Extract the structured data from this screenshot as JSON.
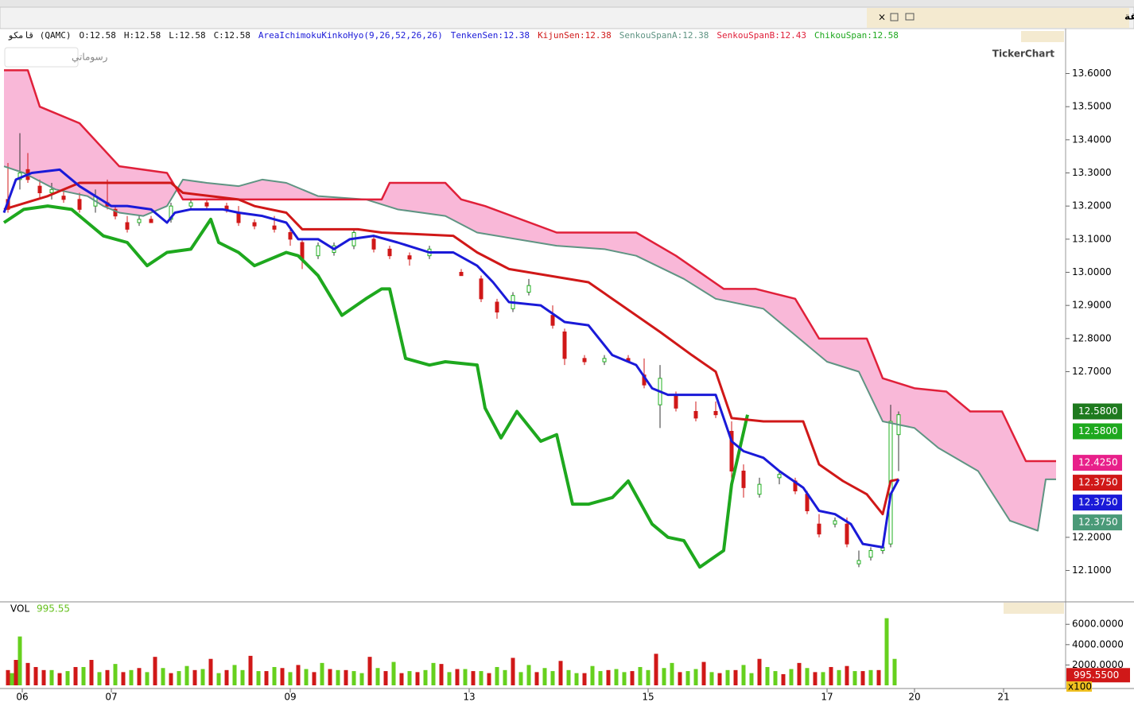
{
  "window_title": "قامكو - خمس عشرة دقيقة",
  "chart_data": {
    "type": "candlestick",
    "ohlc_label": [
      "قامكو (QAMC)",
      "O:12.58",
      "H:12.58",
      "L:12.58",
      "C:12.58"
    ],
    "indicator": "AreaIchimokuKinkoHyo(9,26,52,26,26)",
    "logo": "TickerChart",
    "drawings_button": "رسوماتي",
    "xlim": [
      0,
      267
    ],
    "xticks": [
      {
        "value": 4.6,
        "label": "06"
      },
      {
        "value": 27,
        "label": "07"
      },
      {
        "value": 72,
        "label": "09"
      },
      {
        "value": 117,
        "label": "13"
      },
      {
        "value": 162,
        "label": "15"
      },
      {
        "value": 207,
        "label": "17"
      },
      {
        "value": 229,
        "label": "20"
      },
      {
        "value": 251.4,
        "label": "21"
      }
    ],
    "ylim": [
      12.01,
      13.69
    ],
    "yticks": [
      {
        "value": 13.6,
        "label": "13.6000"
      },
      {
        "value": 13.5,
        "label": "13.5000"
      },
      {
        "value": 13.4,
        "label": "13.4000"
      },
      {
        "value": 13.3,
        "label": "13.3000"
      },
      {
        "value": 13.2,
        "label": "13.2000"
      },
      {
        "value": 13.1,
        "label": "13.1000"
      },
      {
        "value": 13.0,
        "label": "13.0000"
      },
      {
        "value": 12.9,
        "label": "12.9000"
      },
      {
        "value": 12.8,
        "label": "12.8000"
      },
      {
        "value": 12.7,
        "label": "12.7000"
      },
      {
        "value": 12.2,
        "label": "12.2000"
      },
      {
        "value": 12.1,
        "label": "12.1000"
      }
    ],
    "cloud_color": "#f9b8d8",
    "candles": {
      "up_color": "#22b022",
      "down_color": "#d01818",
      "x": [
        1,
        4,
        6,
        9,
        12,
        15,
        19,
        23,
        26,
        28,
        31,
        34,
        37,
        42,
        47,
        51,
        56,
        59,
        63,
        68,
        72,
        75,
        79,
        83,
        88,
        93,
        97,
        102,
        107,
        115,
        120,
        124,
        128,
        132,
        138,
        141,
        146,
        151,
        157,
        161,
        165,
        169,
        174,
        179,
        183,
        186,
        190,
        195,
        199,
        202,
        205,
        209,
        212,
        215,
        218,
        221,
        223,
        225
      ],
      "open": [
        13.22,
        13.28,
        13.31,
        13.26,
        13.24,
        13.23,
        13.22,
        13.2,
        13.21,
        13.19,
        13.15,
        13.15,
        13.16,
        13.16,
        13.2,
        13.21,
        13.2,
        13.18,
        13.15,
        13.14,
        13.12,
        13.09,
        13.05,
        13.06,
        13.08,
        13.1,
        13.07,
        13.05,
        13.05,
        13.0,
        12.98,
        12.91,
        12.89,
        12.94,
        12.87,
        12.82,
        12.74,
        12.73,
        12.74,
        12.69,
        12.6,
        12.63,
        12.58,
        12.58,
        12.52,
        12.4,
        12.33,
        12.38,
        12.37,
        12.33,
        12.24,
        12.24,
        12.24,
        12.12,
        12.14,
        12.16,
        12.18,
        12.51
      ],
      "high": [
        13.33,
        13.42,
        13.36,
        13.28,
        13.27,
        13.25,
        13.24,
        13.25,
        13.28,
        13.2,
        13.17,
        13.17,
        13.17,
        13.21,
        13.22,
        13.22,
        13.21,
        13.2,
        13.16,
        13.17,
        13.13,
        13.1,
        13.09,
        13.09,
        13.13,
        13.11,
        13.08,
        13.06,
        13.08,
        13.01,
        12.99,
        12.92,
        12.94,
        12.98,
        12.9,
        12.83,
        12.75,
        12.75,
        12.75,
        12.74,
        12.72,
        12.64,
        12.61,
        12.61,
        12.55,
        12.42,
        12.38,
        12.4,
        12.38,
        12.34,
        12.27,
        12.26,
        12.26,
        12.16,
        12.17,
        12.19,
        12.6,
        12.58
      ],
      "low": [
        13.18,
        13.25,
        13.27,
        13.22,
        13.22,
        13.21,
        13.18,
        13.18,
        13.19,
        13.16,
        13.12,
        13.14,
        13.15,
        13.15,
        13.19,
        13.19,
        13.18,
        13.14,
        13.13,
        13.12,
        13.08,
        13.01,
        13.04,
        13.05,
        13.07,
        13.06,
        13.04,
        13.02,
        13.04,
        12.99,
        12.91,
        12.86,
        12.88,
        12.93,
        12.83,
        12.72,
        12.72,
        12.72,
        12.73,
        12.65,
        12.53,
        12.58,
        12.55,
        12.56,
        12.36,
        12.32,
        12.32,
        12.36,
        12.33,
        12.27,
        12.2,
        12.23,
        12.17,
        12.11,
        12.13,
        12.15,
        12.17,
        12.4
      ],
      "close": [
        13.19,
        13.3,
        13.28,
        13.24,
        13.25,
        13.22,
        13.19,
        13.23,
        13.2,
        13.17,
        13.13,
        13.16,
        13.15,
        13.2,
        13.21,
        13.2,
        13.19,
        13.15,
        13.14,
        13.13,
        13.1,
        13.04,
        13.08,
        13.08,
        13.12,
        13.07,
        13.05,
        13.04,
        13.07,
        12.99,
        12.92,
        12.88,
        12.93,
        12.96,
        12.84,
        12.74,
        12.73,
        12.74,
        12.73,
        12.66,
        12.68,
        12.59,
        12.56,
        12.57,
        12.4,
        12.35,
        12.36,
        12.39,
        12.34,
        12.28,
        12.21,
        12.25,
        12.18,
        12.13,
        12.16,
        12.17,
        12.55,
        12.57
      ]
    },
    "series": [
      {
        "name": "SenkouSpanA:12.38",
        "color": "#5f9483",
        "x": [
          0,
          5,
          13,
          21,
          25,
          29,
          35,
          41,
          45,
          51,
          59,
          65,
          71,
          79,
          91,
          99,
          111,
          119,
          139,
          151,
          159,
          171,
          179,
          191,
          199,
          207,
          215,
          221,
          229,
          235,
          245,
          253,
          260,
          262,
          264.6
        ],
        "values": [
          13.32,
          13.3,
          13.25,
          13.23,
          13.2,
          13.18,
          13.17,
          13.2,
          13.28,
          13.27,
          13.26,
          13.28,
          13.27,
          13.23,
          13.22,
          13.19,
          13.17,
          13.12,
          13.08,
          13.07,
          13.05,
          12.98,
          12.92,
          12.89,
          12.81,
          12.73,
          12.7,
          12.55,
          12.53,
          12.47,
          12.4,
          12.25,
          12.22,
          12.375,
          12.375
        ]
      },
      {
        "name": "SenkouSpanB:12.43",
        "color": "#e0203a",
        "x": [
          0,
          6,
          9,
          19,
          29,
          41,
          45,
          95,
          97,
          111,
          115,
          121,
          139,
          159,
          169,
          181,
          189,
          199,
          205,
          217,
          221,
          229,
          237,
          243,
          251,
          257,
          264.6
        ],
        "values": [
          13.61,
          13.61,
          13.5,
          13.45,
          13.32,
          13.3,
          13.22,
          13.22,
          13.27,
          13.27,
          13.22,
          13.2,
          13.12,
          13.12,
          13.05,
          12.95,
          12.95,
          12.92,
          12.8,
          12.8,
          12.68,
          12.65,
          12.64,
          12.58,
          12.58,
          12.43,
          12.43
        ]
      },
      {
        "name": "ChikouSpan:12.58",
        "color": "#1ea81e",
        "x": [
          0,
          5,
          11,
          17,
          21,
          25,
          31,
          36,
          41,
          47,
          52,
          54,
          59,
          63,
          67,
          71,
          74,
          79,
          85,
          91,
          95,
          97,
          101,
          107,
          111,
          119,
          121,
          125,
          129,
          135,
          139,
          143,
          147,
          153,
          157,
          163,
          167,
          171,
          175,
          181,
          183,
          187
        ],
        "values": [
          13.15,
          13.19,
          13.2,
          13.19,
          13.15,
          13.11,
          13.09,
          13.02,
          13.06,
          13.07,
          13.16,
          13.09,
          13.06,
          13.02,
          13.04,
          13.06,
          13.05,
          12.99,
          12.87,
          12.92,
          12.95,
          12.95,
          12.74,
          12.72,
          12.73,
          12.72,
          12.59,
          12.5,
          12.58,
          12.49,
          12.51,
          12.3,
          12.3,
          12.32,
          12.37,
          12.24,
          12.2,
          12.19,
          12.11,
          12.16,
          12.36,
          12.57
        ]
      },
      {
        "name": "KijunSen:12.38",
        "color": "#d01818",
        "x": [
          0,
          11,
          19,
          42,
          45,
          59,
          63,
          71,
          75,
          89,
          95,
          113,
          119,
          127,
          147,
          153,
          165,
          173,
          179,
          183,
          191,
          201,
          205,
          211,
          217,
          221,
          223,
          225
        ],
        "values": [
          13.19,
          13.23,
          13.27,
          13.27,
          13.24,
          13.22,
          13.2,
          13.18,
          13.13,
          13.13,
          13.12,
          13.11,
          13.06,
          13.01,
          12.97,
          12.92,
          12.82,
          12.75,
          12.7,
          12.56,
          12.55,
          12.55,
          12.42,
          12.37,
          12.33,
          12.27,
          12.37,
          12.375
        ]
      },
      {
        "name": "TenkenSen:12.38",
        "color": "#1a1ad8",
        "x": [
          0,
          3,
          7,
          14,
          19,
          23,
          27,
          31,
          37,
          41,
          43,
          47,
          55,
          59,
          65,
          71,
          74,
          79,
          83,
          87,
          93,
          99,
          107,
          113,
          119,
          123,
          127,
          135,
          141,
          147,
          153,
          159,
          163,
          167,
          179,
          183,
          186,
          191,
          195,
          201,
          205,
          209,
          213,
          216,
          221,
          223,
          225
        ],
        "values": [
          13.18,
          13.28,
          13.3,
          13.31,
          13.26,
          13.23,
          13.2,
          13.2,
          13.19,
          13.15,
          13.18,
          13.19,
          13.19,
          13.18,
          13.17,
          13.15,
          13.1,
          13.1,
          13.07,
          13.1,
          13.11,
          13.09,
          13.06,
          13.06,
          13.02,
          12.97,
          12.91,
          12.9,
          12.85,
          12.84,
          12.75,
          12.72,
          12.65,
          12.63,
          12.63,
          12.49,
          12.46,
          12.44,
          12.4,
          12.35,
          12.28,
          12.27,
          12.24,
          12.18,
          12.17,
          12.33,
          12.375
        ]
      }
    ],
    "last_labels": [
      {
        "value": 12.58,
        "label": "12.5800",
        "color": "#1e7a1e"
      },
      {
        "value": 12.58,
        "label": "12.5800",
        "color": "#1ea81e"
      },
      {
        "value": 12.425,
        "label": "12.4250",
        "color": "#e8208a"
      },
      {
        "value": 12.375,
        "label": "12.3750",
        "color": "#d01818"
      },
      {
        "value": 12.375,
        "label": "12.3750",
        "color": "#1a1ad8"
      },
      {
        "value": 12.375,
        "label": "12.3750",
        "color": "#4a9a78"
      }
    ],
    "volume": {
      "title": "VOL",
      "last": "995.55",
      "unit": "x100",
      "last_value": {
        "value": 995.55,
        "label": "995.5500"
      },
      "ylim": [
        0,
        6800
      ],
      "yticks": [
        {
          "value": 6000,
          "label": "6000.0000"
        },
        {
          "value": 4000,
          "label": "4000.0000"
        },
        {
          "value": 2000,
          "label": "2000.0000"
        }
      ],
      "series": [
        {
          "color": "#d01818",
          "x": [
            1,
            3,
            6,
            8,
            10,
            14,
            18,
            22,
            26,
            30,
            34,
            38,
            42,
            48,
            52,
            56,
            62,
            66,
            70,
            74,
            78,
            82,
            86,
            92,
            96,
            100,
            104,
            110,
            114,
            118,
            122,
            128,
            134,
            140,
            146,
            152,
            158,
            164,
            170,
            176,
            180,
            184,
            190,
            196,
            200,
            204,
            208,
            212,
            216,
            220
          ],
          "values": [
            1500,
            2500,
            2200,
            1800,
            1500,
            1200,
            1800,
            2500,
            1500,
            1300,
            1700,
            2800,
            1200,
            1500,
            2600,
            1500,
            2900,
            1400,
            1700,
            2000,
            1300,
            1600,
            1500,
            2800,
            1400,
            1200,
            1300,
            2100,
            1600,
            1400,
            1200,
            2700,
            1300,
            2400,
            1200,
            1500,
            1400,
            3100,
            1300,
            2300,
            1200,
            1500,
            2600,
            1100,
            2200,
            1300,
            1800,
            1900,
            1400,
            1500
          ]
        },
        {
          "color": "#66d01e",
          "x": [
            2,
            4,
            12,
            16,
            20,
            24,
            28,
            32,
            36,
            40,
            44,
            46,
            50,
            54,
            58,
            60,
            64,
            68,
            72,
            76,
            80,
            84,
            88,
            90,
            94,
            98,
            102,
            106,
            108,
            112,
            116,
            120,
            124,
            126,
            130,
            132,
            136,
            138,
            142,
            144,
            148,
            150,
            154,
            156,
            160,
            162,
            166,
            168,
            172,
            174,
            178,
            182,
            186,
            188,
            192,
            194,
            198,
            202,
            206,
            210,
            214,
            218,
            222,
            224
          ],
          "values": [
            1200,
            4800,
            1500,
            1400,
            1800,
            1300,
            2100,
            1500,
            1300,
            1700,
            1400,
            1900,
            1600,
            1200,
            2000,
            1500,
            1400,
            1800,
            1300,
            1600,
            2200,
            1500,
            1400,
            1200,
            1700,
            2300,
            1400,
            1500,
            2200,
            1300,
            1600,
            1400,
            1800,
            1500,
            1300,
            2000,
            1700,
            1400,
            1500,
            1200,
            1900,
            1400,
            1600,
            1300,
            1800,
            1500,
            1700,
            2200,
            1400,
            1600,
            1300,
            1500,
            2000,
            1200,
            1800,
            1400,
            1600,
            1700,
            1300,
            1500,
            1400,
            1500,
            6600,
            2600
          ]
        }
      ]
    }
  }
}
